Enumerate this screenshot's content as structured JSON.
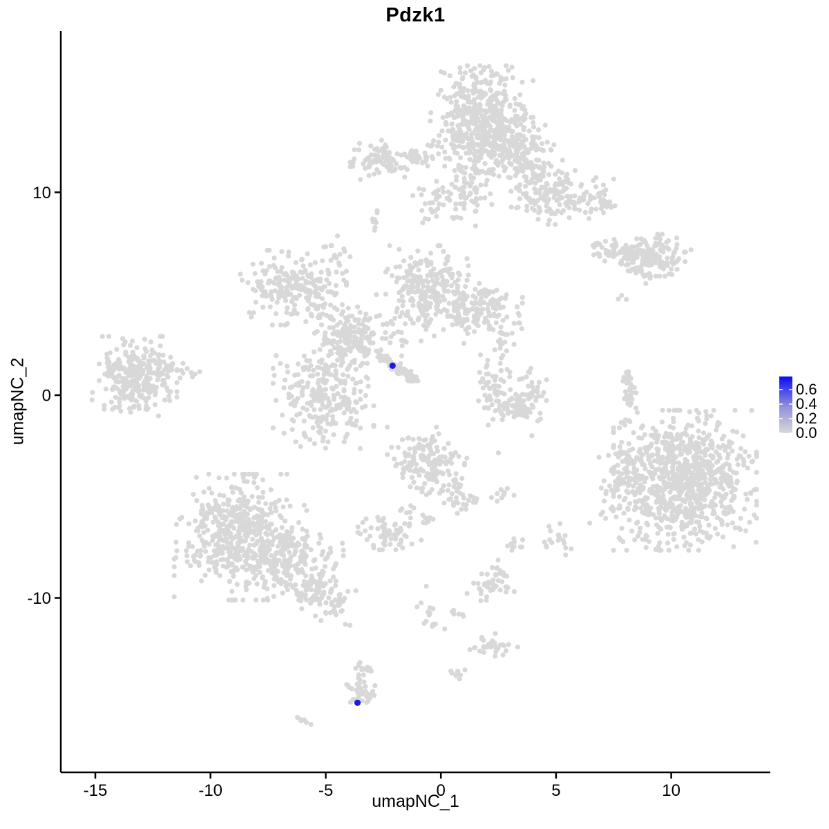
{
  "chart_data": {
    "type": "scatter",
    "title": "Pdzk1",
    "xlabel": "umapNC_1",
    "ylabel": "umapNC_2",
    "xlim": [
      -16.5,
      14.3
    ],
    "ylim": [
      -18.6,
      17.95
    ],
    "xticks": [
      -15,
      -10,
      -5,
      0,
      5,
      10
    ],
    "yticks": [
      -10,
      0,
      10
    ],
    "grid": false,
    "background": "#ffffff",
    "axis_color": "#000000",
    "point_color": "#d8d8d8",
    "point_radius": 3.6,
    "highlight_color": "#1b1be4",
    "highlight_radius": 4.6,
    "colorbar": {
      "tick_labels": [
        "0.6",
        "0.4",
        "0.2",
        "0.0"
      ],
      "tick_values": [
        0.6,
        0.4,
        0.2,
        0.0
      ],
      "max": 0.78,
      "top_color": "#0b0bf5",
      "mid_color": "#9393dd",
      "bottom_color": "#d8d8d8"
    },
    "highlighted_cells": [
      {
        "x": -2.1,
        "y": 1.45,
        "value": 0.65
      },
      {
        "x": -3.62,
        "y": -15.17,
        "value": 0.6
      }
    ],
    "clusters": [
      [
        1.7,
        13.6,
        1.0,
        1.15,
        480
      ],
      [
        1.2,
        10.3,
        0.45,
        0.85,
        70
      ],
      [
        0.0,
        9.7,
        0.6,
        0.55,
        45
      ],
      [
        3.1,
        12.1,
        0.95,
        0.6,
        130
      ],
      [
        4.9,
        9.8,
        0.8,
        0.6,
        130
      ],
      [
        3.9,
        10.9,
        0.6,
        0.5,
        60
      ],
      [
        7.0,
        9.6,
        0.4,
        0.5,
        25
      ],
      [
        -2.55,
        11.6,
        0.6,
        0.42,
        85
      ],
      [
        -2.85,
        8.6,
        0.15,
        0.32,
        9
      ],
      [
        -4.55,
        7.0,
        0.28,
        0.38,
        14
      ],
      [
        -6.4,
        5.3,
        1.0,
        0.8,
        210
      ],
      [
        -3.8,
        2.7,
        0.55,
        0.62,
        130
      ],
      [
        -0.6,
        5.3,
        0.78,
        0.9,
        230
      ],
      [
        1.7,
        4.3,
        0.8,
        0.55,
        150
      ],
      [
        -1.9,
        3.2,
        0.7,
        0.6,
        35
      ],
      [
        -5.1,
        0.0,
        0.95,
        1.15,
        260
      ],
      [
        2.3,
        0.3,
        0.38,
        0.9,
        60
      ],
      [
        3.1,
        -0.75,
        0.55,
        0.3,
        50
      ],
      [
        3.9,
        0.05,
        0.3,
        0.55,
        40
      ],
      [
        2.7,
        2.8,
        0.25,
        0.4,
        12
      ],
      [
        9.2,
        6.9,
        0.72,
        0.45,
        140
      ],
      [
        7.85,
        4.8,
        0.12,
        0.12,
        3
      ],
      [
        10.6,
        -4.2,
        1.35,
        1.5,
        850
      ],
      [
        8.3,
        -4.6,
        0.8,
        1.3,
        110
      ],
      [
        -13.3,
        1.1,
        0.8,
        0.78,
        280
      ],
      [
        -13.0,
        -0.45,
        0.7,
        0.25,
        20
      ],
      [
        -8.7,
        -7.0,
        1.25,
        1.35,
        520
      ],
      [
        -6.3,
        -8.3,
        0.9,
        0.9,
        160
      ],
      [
        -0.6,
        -3.3,
        0.75,
        0.75,
        150
      ],
      [
        2.75,
        -4.95,
        0.22,
        0.18,
        8
      ],
      [
        -2.3,
        -6.75,
        0.6,
        0.38,
        60
      ],
      [
        5.0,
        -7.3,
        0.3,
        0.42,
        18
      ],
      [
        3.35,
        -7.5,
        0.2,
        0.26,
        10
      ],
      [
        2.45,
        -8.65,
        0.2,
        0.26,
        12
      ],
      [
        2.2,
        -9.45,
        0.5,
        0.3,
        35
      ],
      [
        2.3,
        -12.4,
        0.5,
        0.28,
        30
      ],
      [
        0.65,
        -13.9,
        0.2,
        0.26,
        10
      ],
      [
        -3.3,
        -13.75,
        0.25,
        0.35,
        18
      ],
      [
        -3.55,
        -14.6,
        0.3,
        0.36,
        25
      ],
      [
        -3.15,
        -15.0,
        0.2,
        0.16,
        8
      ],
      [
        8.05,
        -1.2,
        0.12,
        0.15,
        6
      ]
    ],
    "streaks": [
      [
        -1.7,
        11.75,
        -0.3,
        11.6,
        25,
        0.15
      ],
      [
        -5.4,
        4.4,
        -3.3,
        2.9,
        60,
        0.5
      ],
      [
        -2.6,
        1.95,
        -1.05,
        0.68,
        95,
        0.1
      ],
      [
        8.0,
        1.35,
        8.3,
        -0.9,
        35,
        0.15
      ],
      [
        6.6,
        7.2,
        8.6,
        7.0,
        60,
        0.3
      ],
      [
        8.35,
        6.3,
        9.0,
        5.72,
        18,
        0.12
      ],
      [
        -6.0,
        -9.3,
        -4.2,
        -10.55,
        80,
        0.45
      ],
      [
        0.3,
        -4.4,
        1.2,
        -5.55,
        40,
        0.3
      ],
      [
        -1.8,
        -5.62,
        -0.4,
        -6.2,
        16,
        0.15
      ],
      [
        -1.1,
        -9.1,
        -0.15,
        -11.6,
        14,
        0.18
      ],
      [
        0.45,
        -10.7,
        1.35,
        -10.95,
        7,
        0.08
      ],
      [
        -6.1,
        -15.9,
        -5.72,
        -16.28,
        6,
        0.1
      ],
      [
        -12.3,
        1.4,
        -10.5,
        1.15,
        16,
        0.18
      ],
      [
        6.8,
        9.9,
        7.3,
        9.3,
        10,
        0.12
      ]
    ],
    "singles": [
      [
        -2.8,
        4.95
      ],
      [
        0.05,
        5.85
      ],
      [
        1.0,
        2.55
      ],
      [
        2.5,
        2.65
      ],
      [
        3.95,
        -2.0
      ],
      [
        2.5,
        -2.85
      ],
      [
        4.5,
        -7.25
      ],
      [
        -0.85,
        -7.15
      ],
      [
        -4.15,
        -11.3
      ],
      [
        -3.95,
        -11.35
      ],
      [
        2.2,
        -5.05
      ]
    ]
  },
  "seed": 42
}
